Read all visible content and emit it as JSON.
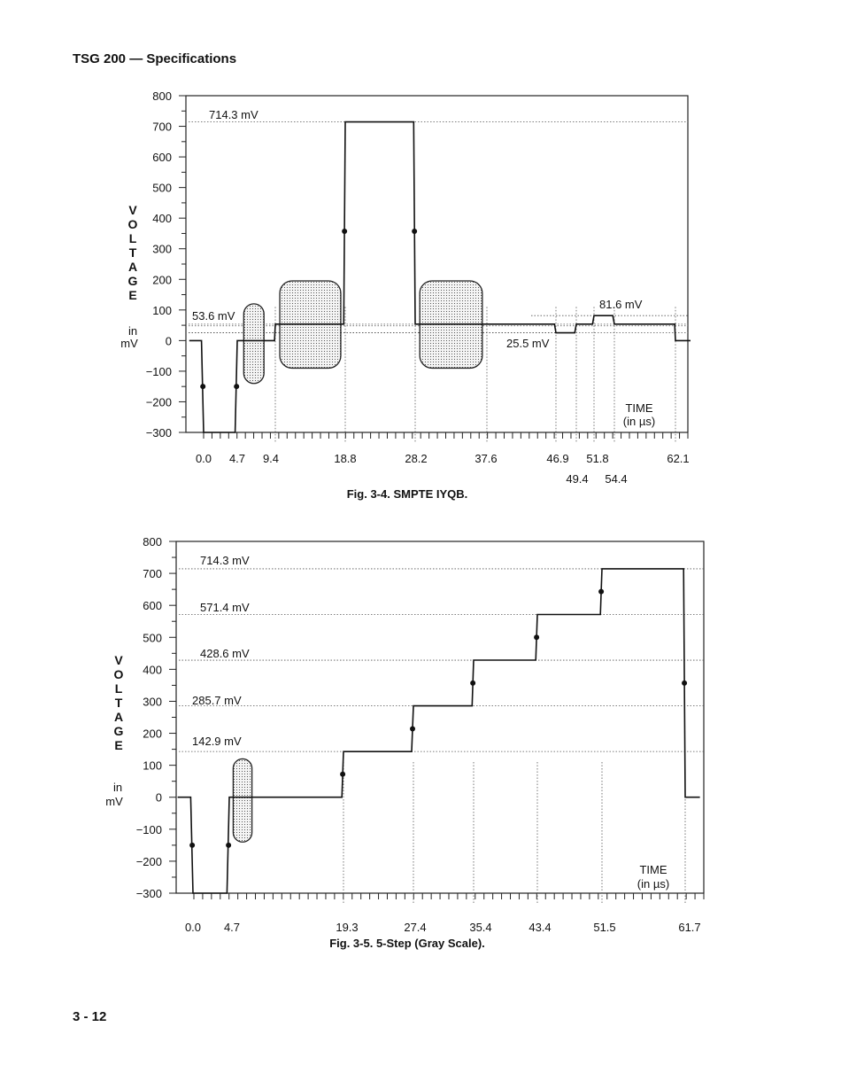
{
  "page": {
    "header": "TSG 200 — Specifications",
    "footer": "3 - 12"
  },
  "chart_data": [
    {
      "type": "line",
      "caption": "Fig. 3-4.  SMPTE IYQB.",
      "ylabel_letters": [
        "V",
        "O",
        "L",
        "T",
        "A",
        "G",
        "E"
      ],
      "yunit": [
        "in",
        "mV"
      ],
      "xlabel": [
        "TIME",
        "(in µs)"
      ],
      "ylim": [
        -300,
        800
      ],
      "yticks": [
        "800",
        "700",
        "600",
        "500",
        "400",
        "300",
        "200",
        "100",
        "0",
        "−100",
        "−200",
        "−300"
      ],
      "ytick_values": [
        800,
        700,
        600,
        500,
        400,
        300,
        200,
        100,
        0,
        -100,
        -200,
        -300
      ],
      "xticks": [
        "0.0",
        "4.7",
        "9.4",
        "18.8",
        "28.2",
        "37.6",
        "46.9",
        "51.8",
        "62.1"
      ],
      "xticks_lower": [
        "49.4",
        "54.4"
      ],
      "annotations": [
        "714.3 mV",
        "53.6 mV",
        "81.6 mV",
        "25.5 mV"
      ],
      "waveform": [
        {
          "t": -2.0,
          "v": 0
        },
        {
          "t": -0.3,
          "v": 0
        },
        {
          "t": 0.0,
          "v": -300
        },
        {
          "t": 4.4,
          "v": -300
        },
        {
          "t": 4.7,
          "v": 0
        },
        {
          "t": 9.3,
          "v": 0
        },
        {
          "t": 9.4,
          "v": 53.6
        },
        {
          "t": 18.6,
          "v": 53.6
        },
        {
          "t": 18.8,
          "v": 714.3
        },
        {
          "t": 28.0,
          "v": 714.3
        },
        {
          "t": 28.2,
          "v": 53.6
        },
        {
          "t": 46.7,
          "v": 53.6
        },
        {
          "t": 46.9,
          "v": 25.5
        },
        {
          "t": 49.2,
          "v": 25.5
        },
        {
          "t": 49.4,
          "v": 53.6
        },
        {
          "t": 51.6,
          "v": 53.6
        },
        {
          "t": 51.8,
          "v": 81.6
        },
        {
          "t": 54.2,
          "v": 81.6
        },
        {
          "t": 54.4,
          "v": 53.6
        },
        {
          "t": 62.0,
          "v": 53.6
        },
        {
          "t": 62.1,
          "v": 0
        },
        {
          "t": 64.0,
          "v": 0
        }
      ],
      "dots": [
        {
          "t": -0.1,
          "v": -150
        },
        {
          "t": 4.6,
          "v": -150
        },
        {
          "t": 18.7,
          "v": 357
        },
        {
          "t": 28.1,
          "v": 357
        }
      ],
      "shaded_regions": [
        {
          "t0": 5.5,
          "t1": 8.0,
          "v0": -140,
          "v1": 120
        },
        {
          "t0": 10.0,
          "t1": 18.2,
          "v0": -90,
          "v1": 195
        },
        {
          "t0": 28.8,
          "t1": 37.0,
          "v0": -90,
          "v1": 195
        }
      ]
    },
    {
      "type": "line",
      "caption": "Fig. 3-5.  5-Step (Gray Scale).",
      "ylabel_letters": [
        "V",
        "O",
        "L",
        "T",
        "A",
        "G",
        "E"
      ],
      "yunit": [
        "in",
        "mV"
      ],
      "xlabel": [
        "TIME",
        "(in µs)"
      ],
      "ylim": [
        -300,
        800
      ],
      "yticks": [
        "800",
        "700",
        "600",
        "500",
        "400",
        "300",
        "200",
        "100",
        "0",
        "−100",
        "−200",
        "−300"
      ],
      "ytick_values": [
        800,
        700,
        600,
        500,
        400,
        300,
        200,
        100,
        0,
        -100,
        -200,
        -300
      ],
      "xticks": [
        "0.0",
        "4.7",
        "19.3",
        "27.4",
        "35.4",
        "43.4",
        "51.5",
        "61.7"
      ],
      "annotations": [
        "714.3 mV",
        "571.4 mV",
        "428.6 mV",
        "285.7 mV",
        "142.9 mV"
      ],
      "waveform": [
        {
          "t": -2.0,
          "v": 0
        },
        {
          "t": -0.3,
          "v": 0
        },
        {
          "t": 0.0,
          "v": -300
        },
        {
          "t": 4.4,
          "v": -300
        },
        {
          "t": 4.7,
          "v": 0
        },
        {
          "t": 19.1,
          "v": 0
        },
        {
          "t": 19.3,
          "v": 142.9
        },
        {
          "t": 27.2,
          "v": 142.9
        },
        {
          "t": 27.4,
          "v": 285.7
        },
        {
          "t": 35.2,
          "v": 285.7
        },
        {
          "t": 35.4,
          "v": 428.6
        },
        {
          "t": 43.2,
          "v": 428.6
        },
        {
          "t": 43.4,
          "v": 571.4
        },
        {
          "t": 51.3,
          "v": 571.4
        },
        {
          "t": 51.5,
          "v": 714.3
        },
        {
          "t": 61.5,
          "v": 714.3
        },
        {
          "t": 61.7,
          "v": 0
        },
        {
          "t": 63.5,
          "v": 0
        }
      ],
      "dots": [
        {
          "t": -0.1,
          "v": -150
        },
        {
          "t": 4.6,
          "v": -150
        },
        {
          "t": 19.2,
          "v": 72
        },
        {
          "t": 27.3,
          "v": 214
        },
        {
          "t": 35.3,
          "v": 357
        },
        {
          "t": 43.3,
          "v": 500
        },
        {
          "t": 51.4,
          "v": 643
        },
        {
          "t": 61.6,
          "v": 357
        }
      ],
      "shaded_regions": [
        {
          "t0": 5.2,
          "t1": 7.6,
          "v0": -140,
          "v1": 120
        }
      ]
    }
  ]
}
